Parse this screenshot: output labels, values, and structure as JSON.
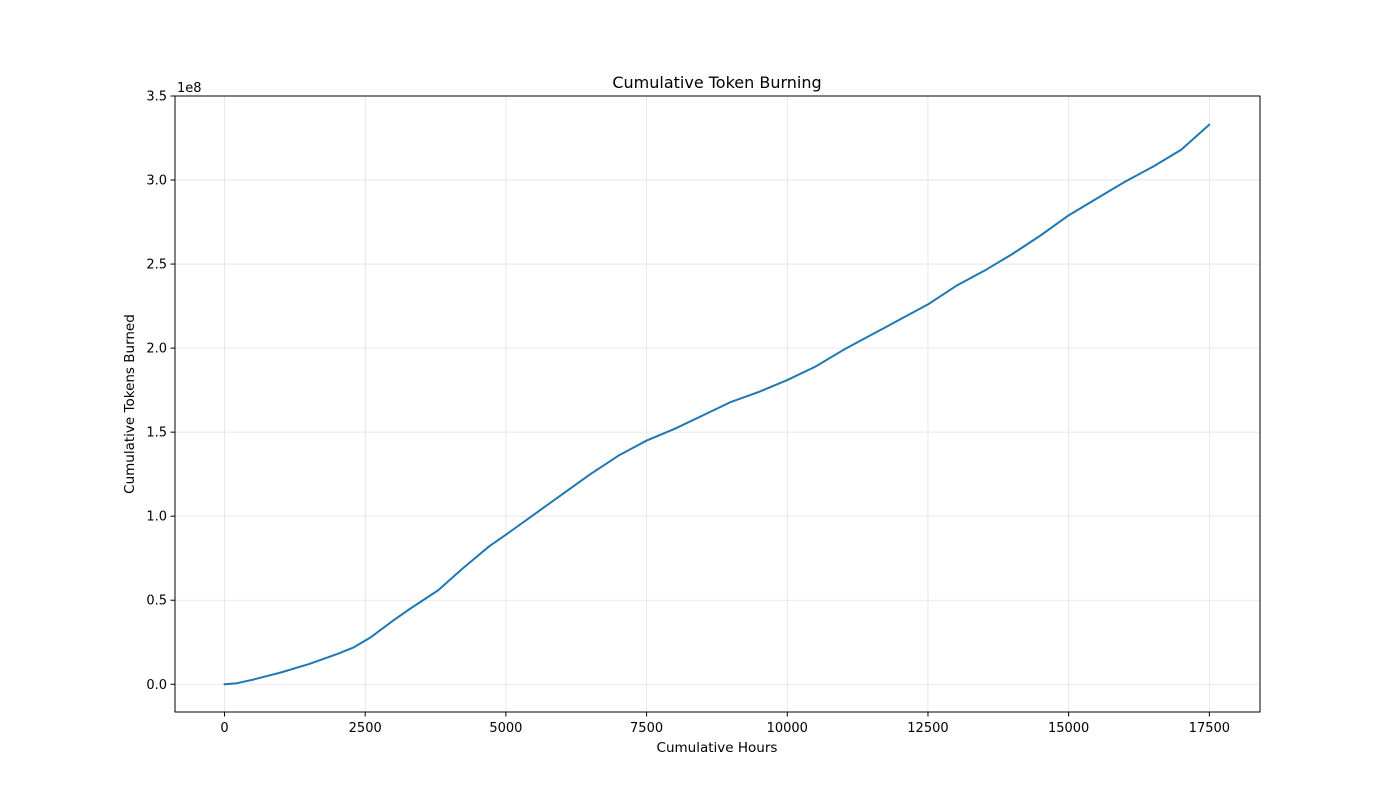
{
  "chart_data": {
    "type": "line",
    "title": "Cumulative Token Burning",
    "xlabel": "Cumulative Hours",
    "ylabel": "Cumulative Tokens Burned",
    "y_offset_label": "1e8",
    "xlim": [
      -880,
      18400
    ],
    "ylim": [
      -0.165,
      3.5
    ],
    "x_ticks": [
      0,
      2500,
      5000,
      7500,
      10000,
      12500,
      15000,
      17500
    ],
    "x_tick_labels": [
      "0",
      "2500",
      "5000",
      "7500",
      "10000",
      "12500",
      "15000",
      "17500"
    ],
    "y_ticks": [
      0.0,
      0.5,
      1.0,
      1.5,
      2.0,
      2.5,
      3.0,
      3.5
    ],
    "y_tick_labels": [
      "0.0",
      "0.5",
      "1.0",
      "1.5",
      "2.0",
      "2.5",
      "3.0",
      "3.5"
    ],
    "grid": true,
    "line_color": "#1f77b4",
    "series": [
      {
        "x": [
          0,
          200,
          500,
          1000,
          1500,
          2000,
          2300,
          2600,
          3000,
          3300,
          3800,
          4200,
          4700,
          5000,
          5500,
          6000,
          6500,
          7000,
          7500,
          8000,
          8500,
          9000,
          9500,
          10000,
          10500,
          11000,
          11500,
          12000,
          12500,
          13000,
          13500,
          14000,
          14500,
          15000,
          15500,
          16000,
          16500,
          17000,
          17500
        ],
        "y": [
          0.0,
          0.005,
          0.027,
          0.07,
          0.12,
          0.18,
          0.22,
          0.28,
          0.38,
          0.45,
          0.56,
          0.68,
          0.82,
          0.89,
          1.01,
          1.13,
          1.25,
          1.36,
          1.45,
          1.52,
          1.6,
          1.68,
          1.74,
          1.81,
          1.89,
          1.99,
          2.08,
          2.17,
          2.26,
          2.37,
          2.46,
          2.56,
          2.67,
          2.79,
          2.89,
          2.99,
          3.08,
          3.18,
          3.33
        ]
      }
    ]
  }
}
